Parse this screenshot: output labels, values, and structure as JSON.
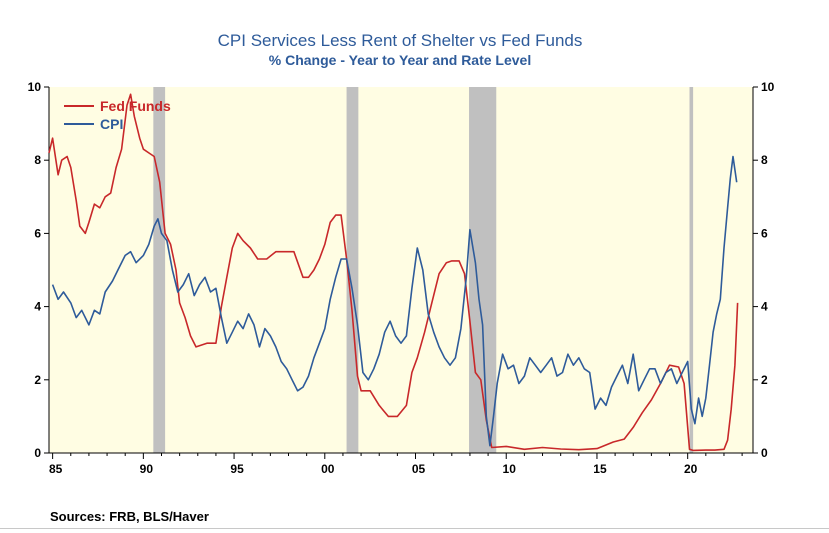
{
  "chart_data": {
    "type": "line",
    "title": "CPI Services Less Rent of Shelter vs Fed Funds",
    "subtitle": "% Change - Year to Year and Rate Level",
    "xlim": [
      1984.8,
      2023.6
    ],
    "ylim": [
      0,
      10
    ],
    "x_ticks": [
      1985,
      1990,
      1995,
      2000,
      2005,
      2010,
      2015,
      2020
    ],
    "x_tick_labels": [
      "85",
      "90",
      "95",
      "00",
      "05",
      "10",
      "15",
      "20"
    ],
    "y_ticks": [
      0,
      2,
      4,
      6,
      8,
      10
    ],
    "y_tick_labels": [
      "0",
      "2",
      "4",
      "6",
      "8",
      "10"
    ],
    "legend_position": "top-left",
    "plot_background": "#fffde3",
    "recession_color": "#c0c0c0",
    "recessions": [
      [
        1990.55,
        1991.2
      ],
      [
        2001.2,
        2001.85
      ],
      [
        2007.95,
        2009.45
      ],
      [
        2020.1,
        2020.3
      ]
    ],
    "series": [
      {
        "name": "Fed Funds",
        "color": "#c8282a",
        "x": [
          1984.8,
          1985.0,
          1985.3,
          1985.5,
          1985.8,
          1986.0,
          1986.3,
          1986.5,
          1986.8,
          1987.0,
          1987.3,
          1987.6,
          1987.9,
          1988.2,
          1988.5,
          1988.8,
          1989.1,
          1989.3,
          1989.5,
          1989.8,
          1990.0,
          1990.3,
          1990.6,
          1990.9,
          1991.2,
          1991.5,
          1991.8,
          1992.0,
          1992.3,
          1992.6,
          1992.9,
          1993.5,
          1994.0,
          1994.3,
          1994.6,
          1994.9,
          1995.2,
          1995.5,
          1995.9,
          1996.3,
          1996.8,
          1997.3,
          1997.8,
          1998.3,
          1998.8,
          1999.1,
          1999.4,
          1999.7,
          2000.0,
          2000.3,
          2000.6,
          2000.9,
          2001.2,
          2001.5,
          2001.8,
          2002.0,
          2002.5,
          2003.0,
          2003.5,
          2004.0,
          2004.5,
          2004.8,
          2005.1,
          2005.5,
          2005.9,
          2006.3,
          2006.7,
          2007.0,
          2007.4,
          2007.7,
          2008.0,
          2008.3,
          2008.6,
          2008.9,
          2009.2,
          2010.0,
          2011.0,
          2012.0,
          2013.0,
          2014.0,
          2015.0,
          2015.9,
          2016.5,
          2017.0,
          2017.5,
          2018.0,
          2018.5,
          2019.0,
          2019.5,
          2019.8,
          2020.1,
          2020.3,
          2021.0,
          2021.5,
          2022.0,
          2022.2,
          2022.4,
          2022.6,
          2022.75
        ],
        "values": [
          8.2,
          8.6,
          7.6,
          8.0,
          8.1,
          7.8,
          6.9,
          6.2,
          6.0,
          6.3,
          6.8,
          6.7,
          7.0,
          7.1,
          7.8,
          8.3,
          9.5,
          9.8,
          9.2,
          8.6,
          8.3,
          8.2,
          8.1,
          7.4,
          6.0,
          5.7,
          5.0,
          4.1,
          3.7,
          3.2,
          2.9,
          3.0,
          3.0,
          4.0,
          4.8,
          5.6,
          6.0,
          5.8,
          5.6,
          5.3,
          5.3,
          5.5,
          5.5,
          5.5,
          4.8,
          4.8,
          5.0,
          5.3,
          5.7,
          6.3,
          6.5,
          6.5,
          5.3,
          3.9,
          2.1,
          1.7,
          1.7,
          1.3,
          1.0,
          1.0,
          1.3,
          2.2,
          2.6,
          3.3,
          4.1,
          4.9,
          5.2,
          5.25,
          5.25,
          4.9,
          3.6,
          2.2,
          2.0,
          0.9,
          0.15,
          0.18,
          0.1,
          0.15,
          0.11,
          0.09,
          0.12,
          0.3,
          0.38,
          0.7,
          1.1,
          1.45,
          1.9,
          2.4,
          2.35,
          1.9,
          0.1,
          0.07,
          0.08,
          0.08,
          0.1,
          0.35,
          1.2,
          2.4,
          4.1
        ]
      },
      {
        "name": "CPI",
        "color": "#2e5b9a",
        "x": [
          1985.0,
          1985.3,
          1985.6,
          1986.0,
          1986.3,
          1986.6,
          1987.0,
          1987.3,
          1987.6,
          1987.9,
          1988.3,
          1988.6,
          1989.0,
          1989.3,
          1989.6,
          1990.0,
          1990.3,
          1990.6,
          1990.8,
          1991.0,
          1991.3,
          1991.6,
          1991.9,
          1992.2,
          1992.5,
          1992.8,
          1993.1,
          1993.4,
          1993.7,
          1994.0,
          1994.3,
          1994.6,
          1994.9,
          1995.2,
          1995.5,
          1995.8,
          1996.1,
          1996.4,
          1996.7,
          1997.0,
          1997.3,
          1997.6,
          1997.9,
          1998.2,
          1998.5,
          1998.8,
          1999.1,
          1999.4,
          1999.7,
          2000.0,
          2000.3,
          2000.6,
          2000.9,
          2001.2,
          2001.5,
          2001.8,
          2002.1,
          2002.4,
          2002.7,
          2003.0,
          2003.3,
          2003.6,
          2003.9,
          2004.2,
          2004.5,
          2004.8,
          2005.1,
          2005.4,
          2005.7,
          2006.0,
          2006.3,
          2006.6,
          2006.9,
          2007.2,
          2007.5,
          2007.8,
          2008.0,
          2008.3,
          2008.5,
          2008.7,
          2008.9,
          2009.1,
          2009.3,
          2009.5,
          2009.8,
          2010.1,
          2010.4,
          2010.7,
          2011.0,
          2011.3,
          2011.6,
          2011.9,
          2012.2,
          2012.5,
          2012.8,
          2013.1,
          2013.4,
          2013.7,
          2014.0,
          2014.3,
          2014.6,
          2014.9,
          2015.2,
          2015.5,
          2015.8,
          2016.1,
          2016.4,
          2016.7,
          2017.0,
          2017.3,
          2017.6,
          2017.9,
          2018.2,
          2018.5,
          2018.8,
          2019.1,
          2019.4,
          2019.7,
          2020.0,
          2020.2,
          2020.4,
          2020.6,
          2020.8,
          2021.0,
          2021.2,
          2021.4,
          2021.6,
          2021.8,
          2022.0,
          2022.2,
          2022.35,
          2022.5,
          2022.7
        ],
        "values": [
          4.6,
          4.2,
          4.4,
          4.1,
          3.7,
          3.9,
          3.5,
          3.9,
          3.8,
          4.4,
          4.7,
          5.0,
          5.4,
          5.5,
          5.2,
          5.4,
          5.7,
          6.2,
          6.4,
          6.0,
          5.8,
          5.0,
          4.4,
          4.6,
          4.9,
          4.3,
          4.6,
          4.8,
          4.4,
          4.5,
          3.7,
          3.0,
          3.3,
          3.6,
          3.4,
          3.8,
          3.5,
          2.9,
          3.4,
          3.2,
          2.9,
          2.5,
          2.3,
          2.0,
          1.7,
          1.8,
          2.1,
          2.6,
          3.0,
          3.4,
          4.2,
          4.8,
          5.3,
          5.3,
          4.5,
          3.5,
          2.2,
          2.0,
          2.3,
          2.7,
          3.3,
          3.6,
          3.2,
          3.0,
          3.2,
          4.5,
          5.6,
          5.0,
          3.8,
          3.3,
          2.9,
          2.6,
          2.4,
          2.6,
          3.4,
          4.8,
          6.1,
          5.2,
          4.2,
          3.5,
          1.0,
          0.2,
          1.0,
          1.9,
          2.7,
          2.3,
          2.4,
          1.9,
          2.1,
          2.6,
          2.4,
          2.2,
          2.4,
          2.6,
          2.1,
          2.2,
          2.7,
          2.4,
          2.6,
          2.3,
          2.2,
          1.2,
          1.5,
          1.3,
          1.8,
          2.1,
          2.4,
          1.9,
          2.7,
          1.7,
          2.0,
          2.3,
          2.3,
          1.9,
          2.2,
          2.3,
          1.9,
          2.2,
          2.5,
          1.2,
          0.8,
          1.5,
          1.0,
          1.5,
          2.4,
          3.3,
          3.8,
          4.2,
          5.6,
          6.7,
          7.5,
          8.1,
          7.4
        ]
      }
    ]
  },
  "sources_text": "Sources:  FRB, BLS/Haver"
}
